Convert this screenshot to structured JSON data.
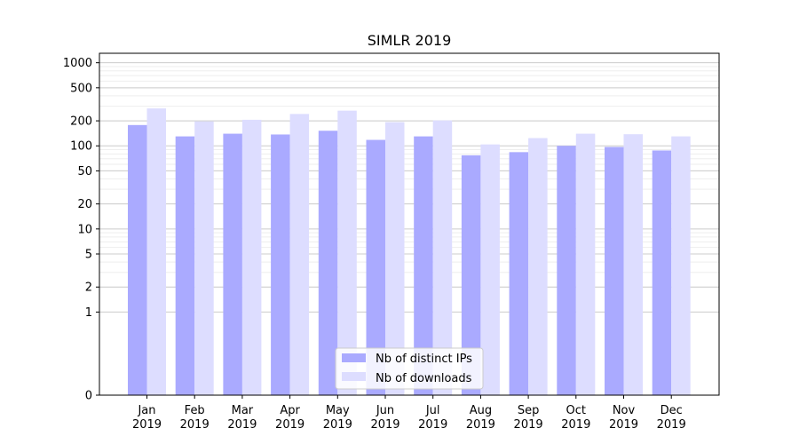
{
  "chart_data": {
    "type": "bar",
    "title": "SIMLR 2019",
    "xlabel": "",
    "ylabel": "",
    "yscale": "symlog",
    "ylim": [
      0,
      1300
    ],
    "categories": [
      "Jan\n2019",
      "Feb\n2019",
      "Mar\n2019",
      "Apr\n2019",
      "May\n2019",
      "Jun\n2019",
      "Jul\n2019",
      "Aug\n2019",
      "Sep\n2019",
      "Oct\n2019",
      "Nov\n2019",
      "Dec\n2019"
    ],
    "yticks": [
      0,
      1,
      2,
      5,
      10,
      20,
      50,
      100,
      200,
      500,
      1000
    ],
    "series": [
      {
        "name": "Nb of distinct IPs",
        "color": "#aaaaff",
        "values": [
          178,
          130,
          140,
          137,
          152,
          118,
          130,
          77,
          84,
          100,
          97,
          88
        ]
      },
      {
        "name": "Nb of downloads",
        "color": "#ddddff",
        "values": [
          282,
          197,
          206,
          242,
          265,
          193,
          202,
          104,
          124,
          140,
          138,
          130
        ]
      }
    ],
    "grid": true,
    "legend_position": "bottom-center"
  }
}
